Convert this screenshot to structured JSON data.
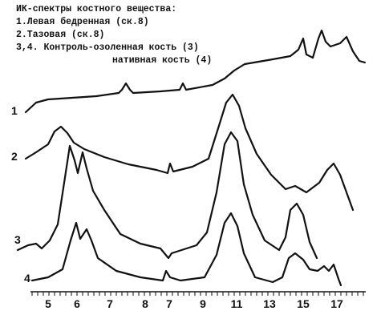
{
  "title": {
    "lines": [
      "ИК-спектры костного вещества:",
      "1.Левая бедренная (ск.8)",
      "2.Тазовая (ск.8)",
      "3,4. Контроль-озоленная кость (3)",
      "нативная кость (4)"
    ]
  },
  "curves": {
    "labels": [
      "1",
      "2",
      "3",
      "4"
    ]
  },
  "axis": {
    "labels": [
      "5",
      "6",
      "7",
      "8",
      "7",
      "9",
      "11",
      "13",
      "15",
      "17"
    ]
  }
}
